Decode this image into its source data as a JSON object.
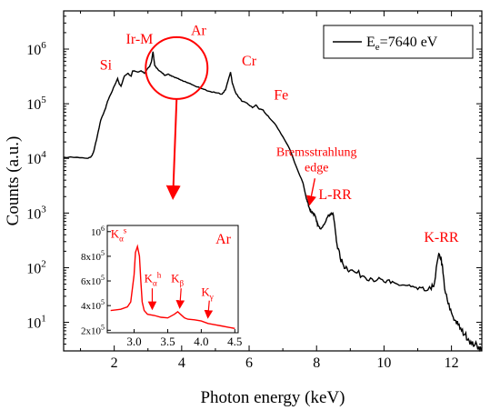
{
  "chart_data": [
    {
      "type": "line",
      "xlabel": "Photon energy (keV)",
      "ylabel": "Counts (a.u.)",
      "xlim": [
        0.5,
        12.9
      ],
      "ylim": [
        3,
        5000000
      ],
      "y_scale": "log",
      "grid": false,
      "legend": {
        "placement": "top-right",
        "label_main": "E",
        "label_sub": "e",
        "label_tail": "=7640 eV"
      },
      "x_ticks": [
        {
          "v": 2,
          "label": "2"
        },
        {
          "v": 4,
          "label": "4"
        },
        {
          "v": 6,
          "label": "6"
        },
        {
          "v": 8,
          "label": "8"
        },
        {
          "v": 10,
          "label": "10"
        },
        {
          "v": 12,
          "label": "12"
        }
      ],
      "y_ticks": [
        {
          "v": 10,
          "base": "10",
          "exp": "1"
        },
        {
          "v": 100,
          "base": "10",
          "exp": "2"
        },
        {
          "v": 1000,
          "base": "10",
          "exp": "3"
        },
        {
          "v": 10000,
          "base": "10",
          "exp": "4"
        },
        {
          "v": 100000,
          "base": "10",
          "exp": "5"
        },
        {
          "v": 1000000,
          "base": "10",
          "exp": "6"
        }
      ],
      "series": [
        {
          "color": "#000000",
          "x": [
            0.5,
            0.9,
            1.2,
            1.3,
            1.35,
            1.4,
            1.5,
            1.6,
            1.75,
            1.8,
            1.9,
            2.0,
            2.1,
            2.15,
            2.2,
            2.3,
            2.4,
            2.5,
            2.55,
            2.6,
            2.7,
            2.8,
            2.9,
            3.0,
            3.05,
            3.1,
            3.15,
            3.2,
            3.3,
            3.4,
            3.5,
            3.6,
            3.7,
            3.8,
            3.9,
            4.0,
            4.2,
            4.4,
            4.6,
            4.8,
            5.0,
            5.2,
            5.3,
            5.4,
            5.45,
            5.5,
            5.6,
            5.7,
            5.8,
            5.9,
            6.0,
            6.1,
            6.2,
            6.3,
            6.4,
            6.5,
            6.6,
            6.8,
            7.0,
            7.2,
            7.4,
            7.6,
            7.7,
            7.75,
            7.8,
            7.85,
            7.9,
            7.95,
            8.0,
            8.05,
            8.1,
            8.2,
            8.3,
            8.4,
            8.45,
            8.5,
            8.55,
            8.6,
            8.7,
            8.8,
            8.9,
            9.0,
            9.2,
            9.4,
            9.6,
            9.8,
            10.0,
            10.2,
            10.4,
            10.6,
            10.8,
            11.0,
            11.2,
            11.4,
            11.5,
            11.6,
            11.65,
            11.7,
            11.75,
            11.8,
            11.9,
            12.0,
            12.1,
            12.2,
            12.3,
            12.4,
            12.5,
            12.6,
            12.7,
            12.8,
            12.9
          ],
          "y": [
            10500,
            10500,
            10000,
            10500,
            11500,
            14000,
            26000,
            50000,
            85000,
            110000,
            150000,
            210000,
            290000,
            230000,
            210000,
            320000,
            360000,
            320000,
            400000,
            400000,
            380000,
            400000,
            360000,
            450000,
            480000,
            580000,
            900000,
            500000,
            420000,
            380000,
            330000,
            350000,
            320000,
            300000,
            290000,
            270000,
            240000,
            210000,
            190000,
            170000,
            160000,
            150000,
            180000,
            300000,
            380000,
            240000,
            160000,
            130000,
            110000,
            105000,
            95000,
            85000,
            95000,
            80000,
            78000,
            65000,
            55000,
            40000,
            25000,
            15000,
            7000,
            3500,
            1800,
            1500,
            1150,
            1050,
            1000,
            900,
            700,
            580,
            520,
            600,
            800,
            950,
            1000,
            900,
            520,
            280,
            150,
            110,
            100,
            90,
            80,
            70,
            65,
            60,
            55,
            52,
            50,
            48,
            45,
            40,
            38,
            40,
            55,
            150,
            170,
            140,
            80,
            40,
            22,
            15,
            11,
            9,
            7,
            6,
            5,
            4,
            4,
            3.5,
            3.5
          ]
        }
      ],
      "annotations": [
        {
          "text": "Si",
          "x": 1.75,
          "y": 420000
        },
        {
          "text": "Ir-M",
          "x": 2.75,
          "y": 1250000
        },
        {
          "text": "Ar",
          "x": 4.5,
          "y": 1800000
        },
        {
          "text": "Cr",
          "x": 6.0,
          "y": 500000
        },
        {
          "text": "Fe",
          "x": 6.95,
          "y": 120000
        },
        {
          "text": "Bremsstrahlung",
          "x": 8.0,
          "y": 11000
        },
        {
          "text": "edge",
          "x": 8.0,
          "y": 5800
        },
        {
          "text": "L-RR",
          "x": 8.55,
          "y": 1800
        },
        {
          "text": "K-RR",
          "x": 11.7,
          "y": 300
        }
      ]
    },
    {
      "type": "line",
      "title": "Ar",
      "xlim": [
        2.6,
        4.55
      ],
      "ylim": [
        180000,
        1050000
      ],
      "x_ticks": [
        {
          "v": 3.0,
          "label": "3.0"
        },
        {
          "v": 3.5,
          "label": "3.5"
        },
        {
          "v": 4.0,
          "label": "4.0"
        },
        {
          "v": 4.5,
          "label": "4.5"
        }
      ],
      "y_ticks": [
        {
          "v": 200000,
          "mant": "2x10",
          "exp": "5"
        },
        {
          "v": 400000,
          "mant": "4x10",
          "exp": "5"
        },
        {
          "v": 600000,
          "mant": "6x10",
          "exp": "5"
        },
        {
          "v": 800000,
          "mant": "8x10",
          "exp": "5"
        },
        {
          "v": 1000000,
          "mant": "10",
          "exp": "6"
        }
      ],
      "series": [
        {
          "color": "#ff0000",
          "x": [
            2.65,
            2.8,
            2.9,
            2.95,
            3.0,
            3.02,
            3.05,
            3.08,
            3.1,
            3.12,
            3.15,
            3.2,
            3.3,
            3.4,
            3.5,
            3.6,
            3.65,
            3.7,
            3.75,
            3.8,
            3.9,
            4.0,
            4.1,
            4.2,
            4.3,
            4.4,
            4.5
          ],
          "y": [
            360000,
            370000,
            390000,
            430000,
            650000,
            830000,
            880000,
            800000,
            600000,
            430000,
            360000,
            330000,
            320000,
            305000,
            300000,
            330000,
            350000,
            325000,
            300000,
            290000,
            285000,
            275000,
            255000,
            245000,
            235000,
            225000,
            215000
          ]
        }
      ],
      "annotations": [
        {
          "base": "K",
          "sub": "α",
          "sup": "s"
        },
        {
          "base": "K",
          "sub": "α",
          "sup": "h"
        },
        {
          "base": "K",
          "sub": "β",
          "sup": ""
        },
        {
          "base": "K",
          "sub": "γ",
          "sup": ""
        }
      ]
    }
  ]
}
